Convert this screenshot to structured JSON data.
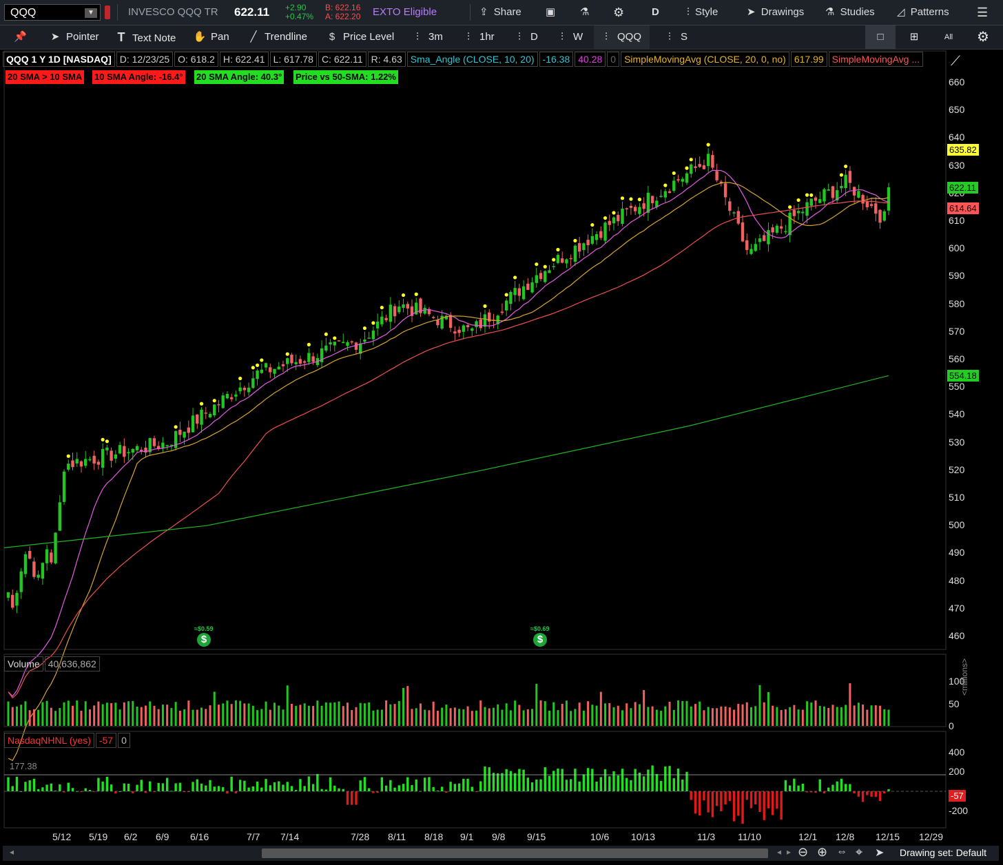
{
  "top": {
    "symbol": "QQQ",
    "name": "INVESCO QQQ TR",
    "last": "622.11",
    "chg": "+2.90",
    "chg_pct": "+0.47%",
    "bid": "B: 622.16",
    "ask": "A: 622.20",
    "exto": "EXTO Eligible",
    "share": "Share",
    "agg": "D",
    "style": "Style",
    "drawings": "Drawings",
    "studies": "Studies",
    "patterns": "Patterns"
  },
  "tools": {
    "pointer": "Pointer",
    "text_note": "Text Note",
    "pan": "Pan",
    "trendline": "Trendline",
    "price_level": "Price Level",
    "t3m": "3m",
    "t1hr": "1hr",
    "tD": "D",
    "tW": "W",
    "tQQQ": "QQQ",
    "tS": "S"
  },
  "info": {
    "title": "QQQ 1 Y 1D [NASDAQ]",
    "date": "D: 12/23/25",
    "open": "O: 618.2",
    "high": "H: 622.41",
    "low": "L: 617.78",
    "close": "C: 622.11",
    "range": "R: 4.63",
    "study1": "Sma_Angle (CLOSE, 10, 20)",
    "study1_v1": "-16.38",
    "study1_v2": "40.28",
    "study1_v3": "0",
    "study2": "SimpleMovingAvg (CLOSE, 20, 0, no)",
    "study2_v": "617.99",
    "study3": "SimpleMovingAvg ..."
  },
  "badges": [
    {
      "text": "20 SMA > 10 SMA",
      "color": "#ff1a1a"
    },
    {
      "text": "10 SMA Angle: -16.4°",
      "color": "#ff1a1a"
    },
    {
      "text": "20 SMA Angle: 40.3°",
      "color": "#22dd22"
    },
    {
      "text": "Price vs 50-SMA: 1.22%",
      "color": "#22dd22"
    }
  ],
  "price_axis": [
    "660",
    "650",
    "640",
    "630",
    "620",
    "610",
    "600",
    "590",
    "580",
    "570",
    "560",
    "550",
    "540",
    "530",
    "520",
    "510",
    "500",
    "490",
    "480",
    "470",
    "460"
  ],
  "price_tags": [
    {
      "text": "635.82",
      "value": 635.82,
      "color": "#ffff33"
    },
    {
      "text": "622.11",
      "value": 622.11,
      "color": "#22cc22"
    },
    {
      "text": "614.64",
      "value": 614.64,
      "color": "#ff5555"
    },
    {
      "text": "554.18",
      "value": 554.18,
      "color": "#22cc22"
    }
  ],
  "dividends": [
    {
      "text": "≈$0.59"
    },
    {
      "text": "≈$0.69"
    }
  ],
  "volume": {
    "label": "Volume",
    "value": "40,636,862",
    "axis": [
      "100",
      "50",
      "0"
    ],
    "unit": "<millions>"
  },
  "nhnl": {
    "label": "NasdaqNHNL (yes)",
    "value": "-57",
    "zero": "0",
    "ref": "177.38",
    "axis": [
      "400",
      "200",
      "0",
      "-200"
    ],
    "tag": "-57"
  },
  "x_axis": [
    "5/12",
    "5/19",
    "6/2",
    "6/9",
    "6/16",
    "7/7",
    "7/14",
    "7/28",
    "8/11",
    "8/18",
    "9/1",
    "9/8",
    "9/15",
    "10/6",
    "10/13",
    "11/3",
    "11/10",
    "12/1",
    "12/8",
    "12/15",
    "12/29"
  ],
  "footer": {
    "drawing_set": "Drawing set: Default"
  },
  "chart_data": {
    "type": "candlestick",
    "instrument": "QQQ",
    "ylim": [
      455,
      665
    ],
    "ma_values": {
      "sma20": 617.99,
      "sma50": 614.64,
      "sma200": 554.18
    },
    "last_close": 622.11,
    "high_52w": 635.82,
    "key_closes": [
      {
        "date": "5/12",
        "close": 522
      },
      {
        "date": "6/9",
        "close": 530
      },
      {
        "date": "7/7",
        "close": 555
      },
      {
        "date": "7/28",
        "close": 567
      },
      {
        "date": "8/11",
        "close": 580
      },
      {
        "date": "9/1",
        "close": 570
      },
      {
        "date": "9/15",
        "close": 591
      },
      {
        "date": "10/6",
        "close": 607
      },
      {
        "date": "11/3",
        "close": 632
      },
      {
        "date": "11/10",
        "close": 598
      },
      {
        "date": "12/1",
        "close": 616
      },
      {
        "date": "12/8",
        "close": 624
      },
      {
        "date": "12/15",
        "close": 610
      },
      {
        "date": "12/23",
        "close": 622.11
      }
    ]
  }
}
